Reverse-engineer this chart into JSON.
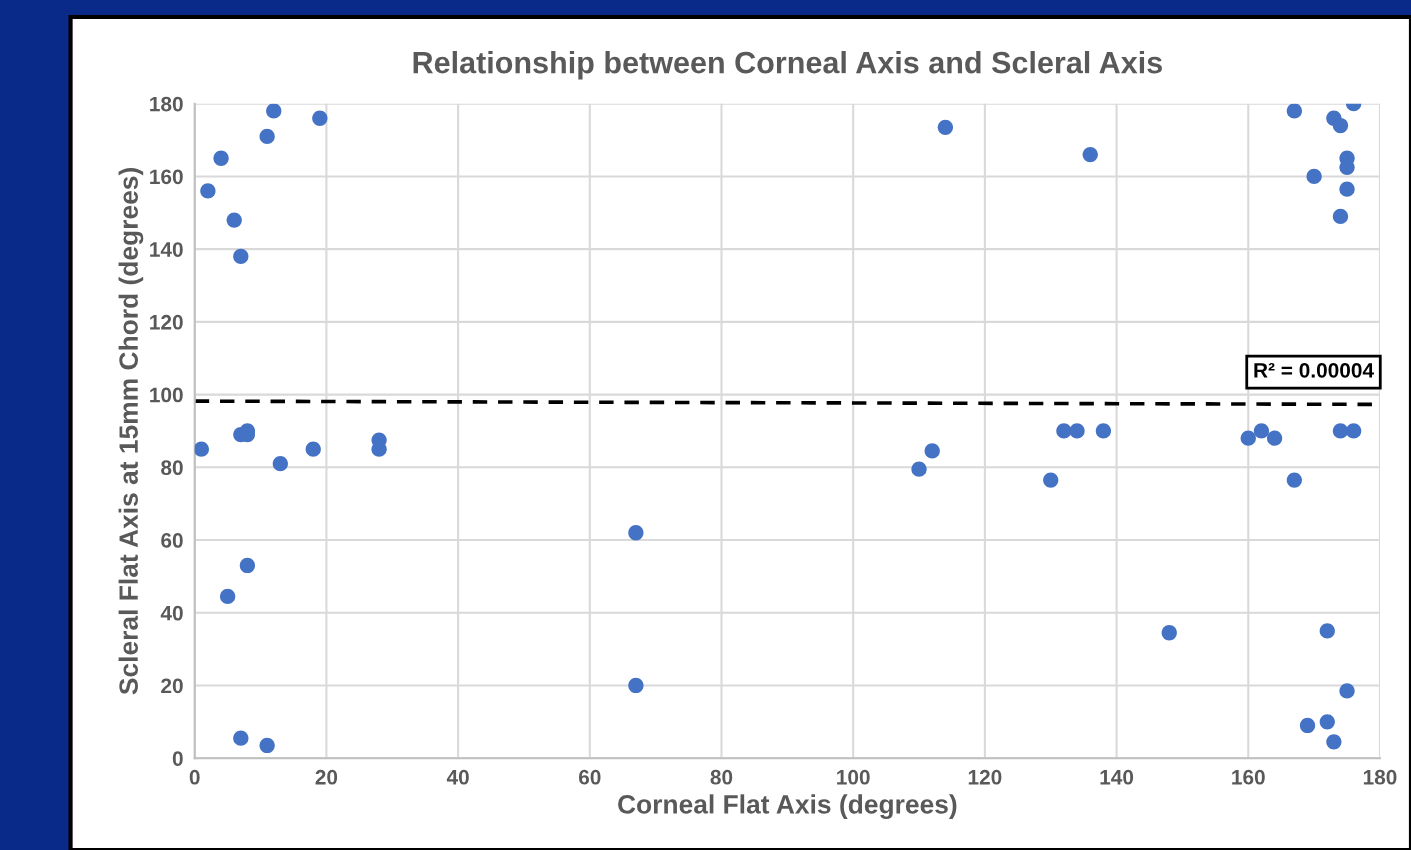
{
  "chart_data": {
    "type": "scatter",
    "title": "Relationship between Corneal Axis and Scleral Axis",
    "xlabel": "Corneal Flat Axis (degrees)",
    "ylabel": "Scleral Flat Axis at 15mm Chord (degrees)",
    "marker": "circle",
    "grid": true,
    "legend": false,
    "xlim": [
      0,
      180
    ],
    "xticks": [
      0,
      20,
      40,
      60,
      80,
      100,
      120,
      140,
      160,
      180
    ],
    "ylim": [
      0,
      180
    ],
    "yticks": [
      0,
      20,
      40,
      60,
      80,
      100,
      120,
      140,
      160,
      180
    ],
    "series": [
      {
        "color": "#4472c4",
        "x": [
          1,
          2,
          4,
          5,
          6,
          7,
          7,
          7,
          8,
          8,
          8,
          11,
          11,
          12,
          13,
          18,
          19,
          28,
          28,
          67,
          67,
          110,
          112,
          114,
          130,
          132,
          134,
          136,
          138,
          148,
          160,
          162,
          164,
          167,
          167,
          169,
          170,
          172,
          172,
          173,
          173,
          174,
          174,
          174,
          175,
          175,
          175,
          175,
          176,
          176
        ],
        "values": [
          85,
          156,
          165,
          44.5,
          148,
          138,
          89,
          5.5,
          90,
          89,
          53,
          171,
          3.5,
          178,
          81,
          85,
          176,
          87.5,
          85,
          62,
          20,
          79.5,
          84.5,
          173.5,
          76.5,
          90,
          90,
          166,
          90,
          34.5,
          88,
          90,
          88,
          76.5,
          178,
          9,
          160,
          10,
          35,
          4.5,
          176,
          174,
          149,
          90,
          165,
          162.5,
          156.5,
          18.5,
          180,
          90
        ]
      },
      {
        "type": "line",
        "color": "#000000",
        "line_style": "dashed",
        "marker": "none",
        "x": [
          0,
          180
        ],
        "values": [
          98.2,
          97.3
        ]
      }
    ],
    "annotations": [
      "R² = 0.00004"
    ]
  }
}
